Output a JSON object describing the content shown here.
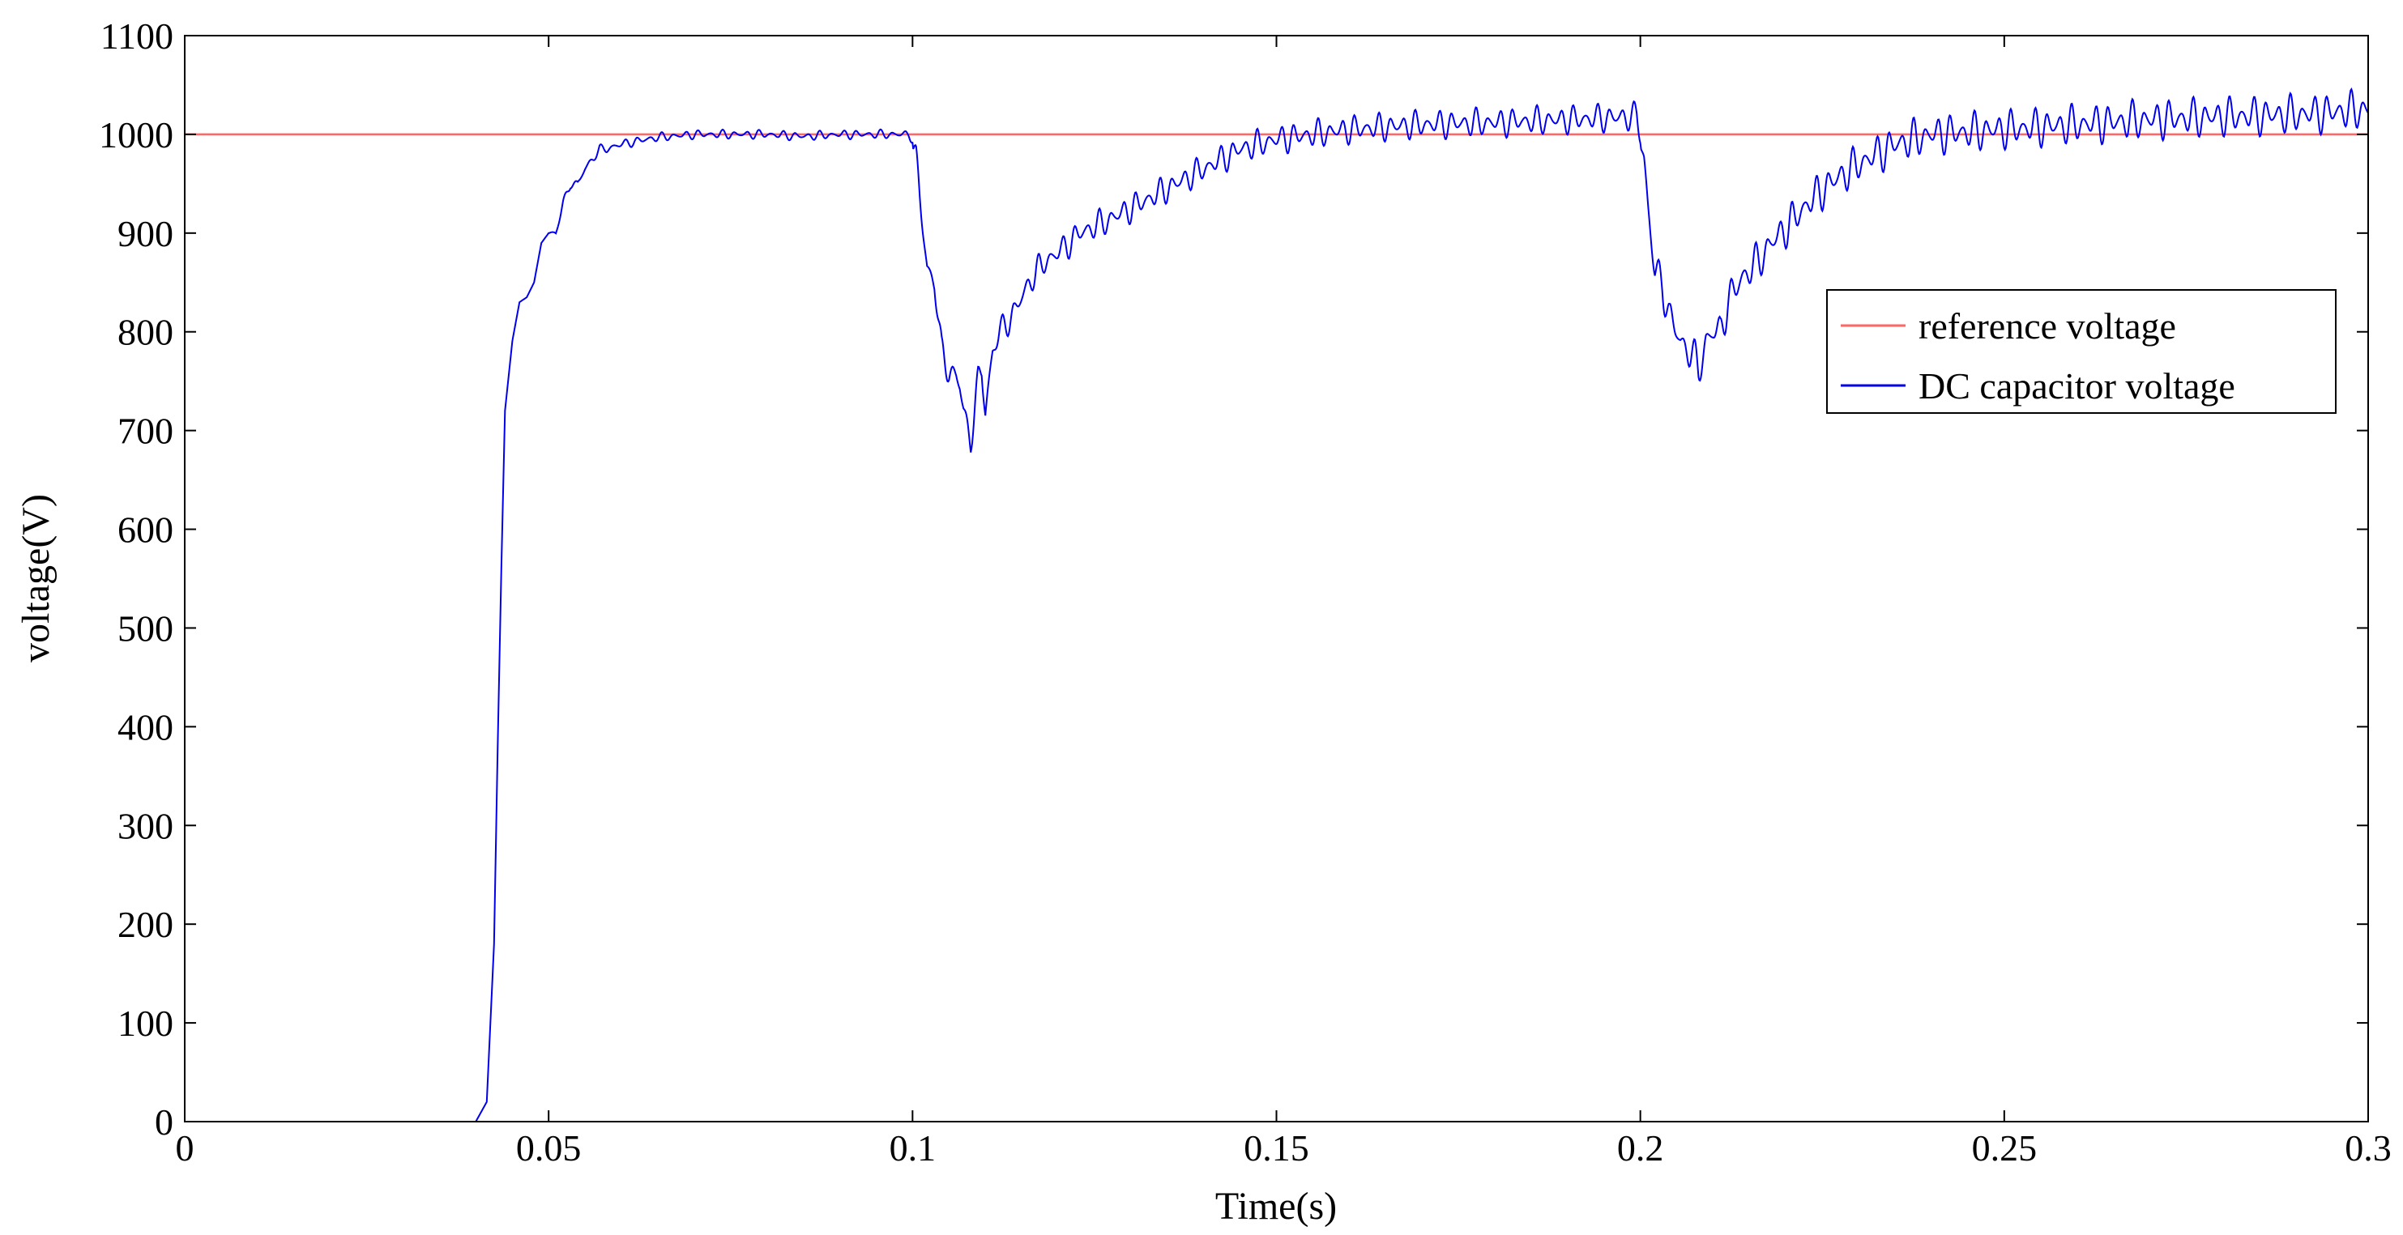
{
  "chart_data": {
    "type": "line",
    "title": "",
    "xlabel": "Time(s)",
    "ylabel": "voltage(V)",
    "xlim": [
      0,
      0.3
    ],
    "ylim": [
      0,
      1100
    ],
    "xticks": [
      0,
      0.05,
      0.1,
      0.15,
      0.2,
      0.25,
      0.3
    ],
    "xtick_labels": [
      "0",
      "0.05",
      "0.1",
      "0.15",
      "0.2",
      "0.25",
      "0.3"
    ],
    "yticks": [
      0,
      100,
      200,
      300,
      400,
      500,
      600,
      700,
      800,
      900,
      1000,
      1100
    ],
    "ytick_labels": [
      "0",
      "100",
      "200",
      "300",
      "400",
      "500",
      "600",
      "700",
      "800",
      "900",
      "1000",
      "1100"
    ],
    "grid": false,
    "legend_position": "right",
    "series": [
      {
        "name": "reference voltage",
        "color": "#ff6666",
        "x": [
          0,
          0.3
        ],
        "y": [
          1000,
          1000
        ]
      },
      {
        "name": "DC capacitor voltage",
        "color": "#0000ee",
        "x": [
          0,
          0.04,
          0.0415,
          0.0425,
          0.043,
          0.0435,
          0.044,
          0.045,
          0.046,
          0.047,
          0.048,
          0.049,
          0.05,
          0.051,
          0.052,
          0.053,
          0.054,
          0.055,
          0.056,
          0.057,
          0.058,
          0.059,
          0.06,
          0.062,
          0.065,
          0.07,
          0.075,
          0.08,
          0.085,
          0.09,
          0.095,
          0.0995,
          0.1,
          0.1005,
          0.101,
          0.102,
          0.103,
          0.104,
          0.105,
          0.106,
          0.1065,
          0.107,
          0.108,
          0.109,
          0.1095,
          0.11,
          0.111,
          0.112,
          0.114,
          0.116,
          0.118,
          0.12,
          0.123,
          0.126,
          0.13,
          0.135,
          0.14,
          0.145,
          0.15,
          0.16,
          0.17,
          0.18,
          0.19,
          0.1995,
          0.2,
          0.2005,
          0.201,
          0.202,
          0.203,
          0.204,
          0.205,
          0.2055,
          0.206,
          0.207,
          0.208,
          0.209,
          0.21,
          0.211,
          0.212,
          0.214,
          0.216,
          0.218,
          0.22,
          0.223,
          0.226,
          0.23,
          0.235,
          0.24,
          0.25,
          0.26,
          0.27,
          0.28,
          0.29,
          0.3
        ],
        "y": [
          0,
          0,
          20,
          180,
          380,
          560,
          720,
          790,
          830,
          835,
          850,
          890,
          900,
          900,
          930,
          950,
          950,
          965,
          975,
          985,
          985,
          988,
          990,
          993,
          997,
          1000,
          1000,
          1000,
          998,
          1000,
          1000,
          1000,
          995,
          975,
          935,
          865,
          850,
          780,
          760,
          755,
          745,
          720,
          690,
          750,
          760,
          720,
          780,
          800,
          820,
          850,
          870,
          880,
          900,
          910,
          925,
          945,
          965,
          985,
          995,
          1005,
          1010,
          1012,
          1015,
          1018,
          1000,
          975,
          930,
          860,
          850,
          815,
          800,
          790,
          785,
          780,
          760,
          790,
          800,
          800,
          830,
          855,
          870,
          890,
          905,
          930,
          950,
          970,
          990,
          1000,
          1005,
          1010,
          1015,
          1018,
          1020,
          1025
        ]
      }
    ]
  }
}
